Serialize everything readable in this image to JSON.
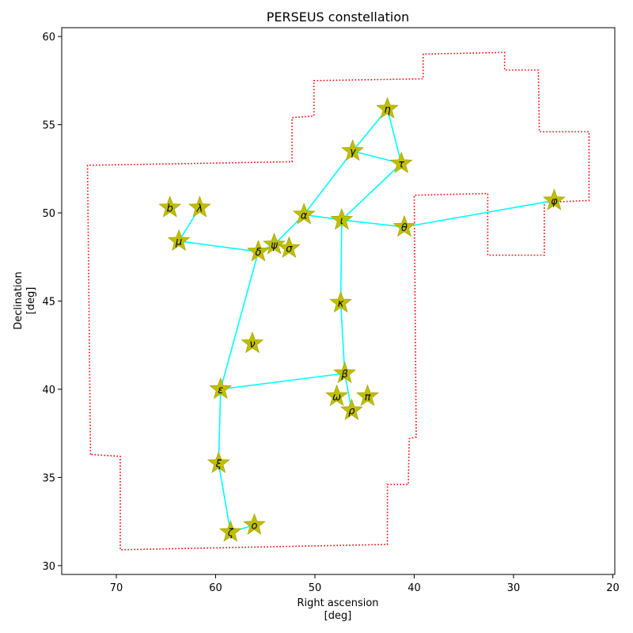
{
  "chart_data": {
    "type": "scatter",
    "title": "PERSEUS constellation",
    "xlabel": [
      "Right ascension",
      "[deg]"
    ],
    "ylabel": [
      "Declination",
      "[deg]"
    ],
    "xlim": [
      75.5,
      19.8
    ],
    "ylim": [
      29.5,
      60.5
    ],
    "xticks": [
      70,
      60,
      50,
      40,
      30,
      20
    ],
    "yticks": [
      30,
      35,
      40,
      45,
      50,
      55,
      60
    ],
    "grid": false,
    "colors": {
      "boundary": "#ff0000",
      "lines": "#00ffff",
      "star_fill": "#bfbf00",
      "star_edge": "#a8a800"
    },
    "stars": [
      {
        "label": "b",
        "ra": 64.6,
        "dec": 50.3
      },
      {
        "label": "λ",
        "ra": 61.6,
        "dec": 50.3
      },
      {
        "label": "μ",
        "ra": 63.7,
        "dec": 48.4
      },
      {
        "label": "δ",
        "ra": 55.7,
        "dec": 47.8
      },
      {
        "label": "ψ",
        "ra": 54.1,
        "dec": 48.2
      },
      {
        "label": "σ",
        "ra": 52.6,
        "dec": 48.0
      },
      {
        "label": "α",
        "ra": 51.1,
        "dec": 49.9
      },
      {
        "label": "ι",
        "ra": 47.3,
        "dec": 49.6
      },
      {
        "label": "θ",
        "ra": 41.0,
        "dec": 49.2
      },
      {
        "label": "γ",
        "ra": 46.2,
        "dec": 53.5
      },
      {
        "label": "η",
        "ra": 42.7,
        "dec": 55.9
      },
      {
        "label": "τ",
        "ra": 41.3,
        "dec": 52.8
      },
      {
        "label": "φ",
        "ra": 25.9,
        "dec": 50.7
      },
      {
        "label": "κ",
        "ra": 47.4,
        "dec": 44.9
      },
      {
        "label": "ν",
        "ra": 56.3,
        "dec": 42.6
      },
      {
        "label": "β",
        "ra": 47.0,
        "dec": 40.9
      },
      {
        "label": "ω",
        "ra": 47.8,
        "dec": 39.6
      },
      {
        "label": "π",
        "ra": 44.7,
        "dec": 39.6
      },
      {
        "label": "ρ",
        "ra": 46.3,
        "dec": 38.8
      },
      {
        "label": "ε",
        "ra": 59.5,
        "dec": 40.0
      },
      {
        "label": "ξ",
        "ra": 59.7,
        "dec": 35.8
      },
      {
        "label": "ζ",
        "ra": 58.5,
        "dec": 31.9
      },
      {
        "label": "ο",
        "ra": 56.1,
        "dec": 32.3
      }
    ],
    "lines": [
      [
        "λ",
        "μ"
      ],
      [
        "μ",
        "δ"
      ],
      [
        "δ",
        "ψ"
      ],
      [
        "ψ",
        "α"
      ],
      [
        "α",
        "ι"
      ],
      [
        "ι",
        "θ"
      ],
      [
        "θ",
        "φ"
      ],
      [
        "α",
        "γ"
      ],
      [
        "γ",
        "η"
      ],
      [
        "η",
        "τ"
      ],
      [
        "τ",
        "ι"
      ],
      [
        "γ",
        "τ"
      ],
      [
        "ι",
        "κ"
      ],
      [
        "κ",
        "β"
      ],
      [
        "β",
        "ρ"
      ],
      [
        "β",
        "ε"
      ],
      [
        "δ",
        "ε"
      ],
      [
        "ε",
        "ξ"
      ],
      [
        "ξ",
        "ζ"
      ],
      [
        "ζ",
        "ο"
      ]
    ],
    "boundary": [
      [
        72.6,
        36.3
      ],
      [
        72.9,
        52.7
      ],
      [
        52.3,
        52.9
      ],
      [
        52.3,
        55.4
      ],
      [
        50.1,
        55.5
      ],
      [
        50.1,
        57.5
      ],
      [
        39.1,
        57.6
      ],
      [
        39.1,
        59.0
      ],
      [
        30.9,
        59.1
      ],
      [
        30.9,
        58.1
      ],
      [
        27.5,
        58.1
      ],
      [
        27.4,
        54.6
      ],
      [
        22.4,
        54.6
      ],
      [
        22.4,
        50.7
      ],
      [
        26.9,
        50.6
      ],
      [
        26.9,
        47.6
      ],
      [
        32.6,
        47.6
      ],
      [
        32.6,
        51.1
      ],
      [
        40.0,
        51.0
      ],
      [
        39.8,
        37.3
      ],
      [
        40.5,
        37.2
      ],
      [
        40.6,
        34.6
      ],
      [
        42.7,
        34.6
      ],
      [
        42.7,
        31.2
      ],
      [
        69.6,
        30.9
      ],
      [
        69.6,
        36.2
      ],
      [
        72.6,
        36.3
      ]
    ]
  }
}
